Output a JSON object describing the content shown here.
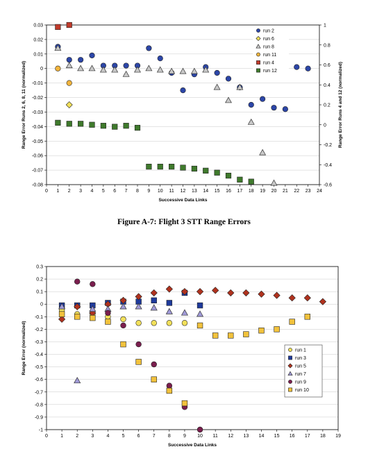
{
  "caption": "Figure A-7:  Flight 3 STT Range Errors",
  "chart_data": [
    {
      "type": "scatter",
      "title": "",
      "xlabel": "Successive Data Links",
      "ylabel": "Range Error Runs 2, 6, 8, 11 (normalized)",
      "y2label": "Range Error Runs 4 and 12 (normalized)",
      "xlim": [
        0,
        24
      ],
      "ylim": [
        -0.08,
        0.03
      ],
      "y2lim": [
        -0.6,
        1.0
      ],
      "xticks": [
        "0",
        "1",
        "2",
        "3",
        "4",
        "5",
        "6",
        "7",
        "8",
        "9",
        "10",
        "11",
        "12",
        "13",
        "14",
        "15",
        "16",
        "17",
        "18",
        "19",
        "20",
        "21",
        "22",
        "23",
        "24"
      ],
      "yticks": [
        "0.03",
        "0.02",
        "0.01",
        "0",
        "-0.01",
        "-0.02",
        "-0.03",
        "-0.04",
        "-0.05",
        "-0.06",
        "-0.07",
        "-0.08"
      ],
      "y2ticks": [
        "1",
        "0.8",
        "0.6",
        "0.4",
        "0.2",
        "0",
        "-0.2",
        "-0.4",
        "-0.6"
      ],
      "legend_position": "top-right",
      "series": [
        {
          "name": "run 2",
          "marker": "circle",
          "color": "#2c46a8",
          "axis": "left",
          "x": [
            1,
            2,
            3,
            4,
            5,
            6,
            7,
            8,
            9,
            10,
            11,
            12,
            13,
            14,
            15,
            16,
            17,
            18,
            19,
            20,
            21,
            22,
            23
          ],
          "y": [
            0.015,
            0.006,
            0.006,
            0.009,
            0.002,
            0.002,
            0.002,
            0.002,
            0.014,
            0.007,
            -0.003,
            -0.015,
            -0.004,
            0.001,
            -0.003,
            -0.007,
            -0.013,
            -0.025,
            -0.021,
            -0.027,
            -0.028,
            0.001,
            0.0
          ]
        },
        {
          "name": "run 6",
          "marker": "diamond",
          "color": "#f2e05a",
          "axis": "left",
          "x": [
            2
          ],
          "y": [
            -0.025
          ]
        },
        {
          "name": "run 8",
          "marker": "triangle",
          "color": "#c8c8c8",
          "axis": "left",
          "x": [
            1,
            2,
            3,
            4,
            5,
            6,
            7,
            8,
            9,
            10,
            11,
            12,
            13,
            14,
            15,
            16,
            17,
            18,
            19,
            20
          ],
          "y": [
            0.014,
            0.002,
            0.0,
            0.0,
            -0.001,
            -0.001,
            -0.004,
            -0.001,
            0.0,
            -0.001,
            -0.002,
            -0.002,
            -0.002,
            -0.001,
            -0.013,
            -0.022,
            -0.013,
            -0.037,
            -0.058,
            -0.079
          ]
        },
        {
          "name": "run 11",
          "marker": "circle",
          "color": "#f2b43c",
          "axis": "left",
          "x": [
            1,
            2
          ],
          "y": [
            0.0,
            -0.01
          ]
        },
        {
          "name": "run 4",
          "marker": "square",
          "color": "#c03a2a",
          "axis": "right",
          "x": [
            1,
            2
          ],
          "y": [
            0.98,
            1.0
          ]
        },
        {
          "name": "run 12",
          "marker": "square",
          "color": "#3f7a2c",
          "axis": "right",
          "x": [
            1,
            2,
            3,
            4,
            5,
            6,
            7,
            8,
            9,
            10,
            11,
            12,
            13,
            14,
            15,
            16,
            17,
            18
          ],
          "y": [
            0.02,
            0.01,
            0.01,
            0.0,
            -0.01,
            -0.02,
            -0.01,
            -0.03,
            -0.42,
            -0.42,
            -0.42,
            -0.43,
            -0.44,
            -0.46,
            -0.48,
            -0.51,
            -0.55,
            -0.57
          ]
        }
      ]
    },
    {
      "type": "scatter",
      "title": "",
      "xlabel": "Successive Data Links",
      "ylabel": "Range Error (normalized)",
      "xlim": [
        0,
        19
      ],
      "ylim": [
        -1.0,
        0.3
      ],
      "xticks": [
        "0",
        "1",
        "2",
        "3",
        "4",
        "5",
        "6",
        "7",
        "8",
        "9",
        "10",
        "11",
        "12",
        "13",
        "14",
        "15",
        "16",
        "17",
        "18",
        "19"
      ],
      "yticks": [
        "0.3",
        "0.2",
        "0.1",
        "0",
        "-0.1",
        "-0.2",
        "-0.3",
        "-0.4",
        "-0.5",
        "-0.6",
        "-0.7",
        "-0.8",
        "-0.9",
        "-1"
      ],
      "legend_position": "lower-right",
      "series": [
        {
          "name": "run 1",
          "marker": "circle",
          "color": "#f2e05a",
          "x": [
            1,
            2,
            3,
            4,
            5,
            6,
            7,
            8,
            9
          ],
          "y": [
            -0.05,
            -0.08,
            -0.08,
            -0.1,
            -0.12,
            -0.15,
            -0.15,
            -0.15,
            -0.15
          ]
        },
        {
          "name": "run 3",
          "marker": "square",
          "color": "#1e3a9c",
          "x": [
            1,
            2,
            3,
            4,
            5,
            6,
            7,
            8,
            9,
            10
          ],
          "y": [
            -0.01,
            -0.01,
            -0.01,
            0.01,
            0.02,
            0.02,
            0.03,
            0.01,
            0.09,
            -0.01
          ]
        },
        {
          "name": "run 5",
          "marker": "diamond",
          "color": "#b0321e",
          "x": [
            1,
            2,
            3,
            4,
            5,
            6,
            7,
            8,
            9,
            10,
            11,
            12,
            13,
            14,
            15,
            16,
            17,
            18
          ],
          "y": [
            -0.12,
            -0.02,
            -0.07,
            0.0,
            0.03,
            0.06,
            0.09,
            0.12,
            0.1,
            0.1,
            0.11,
            0.09,
            0.09,
            0.08,
            0.07,
            0.05,
            0.05,
            0.02
          ]
        },
        {
          "name": "run 7",
          "marker": "triangle",
          "color": "#a09ad8",
          "x": [
            1,
            2,
            3,
            4,
            5,
            6,
            7,
            8,
            9,
            10
          ],
          "y": [
            -0.02,
            -0.61,
            -0.04,
            -0.04,
            -0.02,
            -0.02,
            -0.03,
            -0.06,
            -0.07,
            -0.08
          ]
        },
        {
          "name": "run 9",
          "marker": "circle",
          "color": "#7a1e4e",
          "x": [
            2,
            3,
            4,
            5,
            6,
            7,
            8,
            9,
            10
          ],
          "y": [
            0.18,
            0.16,
            -0.07,
            -0.17,
            -0.32,
            -0.48,
            -0.65,
            -0.82,
            -1.0
          ]
        },
        {
          "name": "run 10",
          "marker": "square",
          "color": "#f2c23c",
          "x": [
            1,
            2,
            3,
            4,
            5,
            6,
            7,
            8,
            9,
            10,
            11,
            12,
            13,
            14,
            15,
            16,
            17
          ],
          "y": [
            -0.08,
            -0.1,
            -0.11,
            -0.14,
            -0.32,
            -0.46,
            -0.6,
            -0.69,
            -0.79,
            -0.17,
            -0.25,
            -0.25,
            -0.24,
            -0.21,
            -0.2,
            -0.14,
            -0.1
          ]
        }
      ]
    }
  ]
}
